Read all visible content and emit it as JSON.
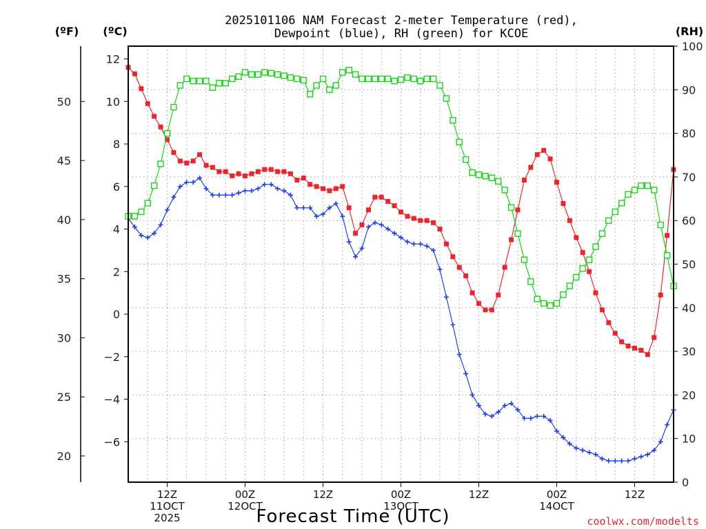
{
  "chart_data": {
    "type": "line",
    "title": [
      "2025101106 NAM Forecast 2-meter Temperature (red),",
      "Dewpoint (blue), RH (green) for KCOE"
    ],
    "xlabel": "Forecast Time (UTC)",
    "units": {
      "left_outer": "(ºF)",
      "left_inner": "(ºC)",
      "right": "(RH)"
    },
    "x_range_hours": [
      0,
      84
    ],
    "x_ticks": [
      {
        "hour": 6,
        "lines": [
          "12Z",
          "11OCT",
          "2025"
        ]
      },
      {
        "hour": 18,
        "lines": [
          "00Z",
          "12OCT"
        ]
      },
      {
        "hour": 30,
        "lines": [
          "12Z"
        ]
      },
      {
        "hour": 42,
        "lines": [
          "00Z",
          "13OCT"
        ]
      },
      {
        "hour": 54,
        "lines": [
          "12Z"
        ]
      },
      {
        "hour": 66,
        "lines": [
          "00Z",
          "14OCT"
        ]
      },
      {
        "hour": 78,
        "lines": [
          "12Z"
        ]
      }
    ],
    "y_left_c": {
      "range": [
        -7.9,
        12.6
      ],
      "ticks": [
        12,
        10,
        8,
        6,
        4,
        2,
        0,
        -2,
        -4,
        -6
      ]
    },
    "y_left_f": {
      "ticks": [
        50,
        45,
        40,
        35,
        30,
        25,
        20
      ]
    },
    "y_right_rh": {
      "range": [
        0,
        100
      ],
      "ticks": [
        100,
        90,
        80,
        70,
        60,
        50,
        40,
        30,
        20,
        10,
        0
      ]
    },
    "grid": true,
    "x_hours": [
      0,
      1,
      2,
      3,
      4,
      5,
      6,
      7,
      8,
      9,
      10,
      11,
      12,
      13,
      14,
      15,
      16,
      17,
      18,
      19,
      20,
      21,
      22,
      23,
      24,
      25,
      26,
      27,
      28,
      29,
      30,
      31,
      32,
      33,
      34,
      35,
      36,
      37,
      38,
      39,
      40,
      41,
      42,
      43,
      44,
      45,
      46,
      47,
      48,
      49,
      50,
      51,
      52,
      53,
      54,
      55,
      56,
      57,
      58,
      59,
      60,
      61,
      62,
      63,
      64,
      65,
      66,
      67,
      68,
      69,
      70,
      71,
      72,
      73,
      74,
      75,
      76,
      77,
      78,
      79,
      80,
      81,
      82,
      83,
      84
    ],
    "series": [
      {
        "name": "Temperature",
        "unit": "°C",
        "color": "#e8262e",
        "marker": "filled-square",
        "values": [
          11.6,
          11.3,
          10.6,
          9.9,
          9.3,
          8.8,
          8.2,
          7.6,
          7.2,
          7.1,
          7.2,
          7.5,
          7.0,
          6.9,
          6.7,
          6.7,
          6.5,
          6.6,
          6.5,
          6.6,
          6.7,
          6.8,
          6.8,
          6.7,
          6.7,
          6.6,
          6.3,
          6.4,
          6.1,
          6.0,
          5.9,
          5.8,
          5.9,
          6.0,
          5.0,
          3.8,
          4.2,
          4.9,
          5.5,
          5.5,
          5.3,
          5.1,
          4.8,
          4.6,
          4.5,
          4.4,
          4.4,
          4.3,
          4.0,
          3.3,
          2.7,
          2.2,
          1.8,
          1.0,
          0.5,
          0.2,
          0.2,
          0.9,
          2.2,
          3.5,
          4.9,
          6.3,
          6.9,
          7.5,
          7.7,
          7.3,
          6.2,
          5.2,
          4.4,
          3.6,
          2.9,
          2.0,
          1.0,
          0.2,
          -0.4,
          -0.9,
          -1.3,
          -1.5,
          -1.6,
          -1.7,
          -1.9,
          -1.1,
          0.9,
          3.7,
          6.8
        ]
      },
      {
        "name": "Dewpoint",
        "unit": "°C",
        "color": "#1f3fe0",
        "marker": "plus",
        "values": [
          4.5,
          4.1,
          3.7,
          3.6,
          3.8,
          4.2,
          4.9,
          5.5,
          6.0,
          6.2,
          6.2,
          6.4,
          5.9,
          5.6,
          5.6,
          5.6,
          5.6,
          5.7,
          5.8,
          5.8,
          5.9,
          6.1,
          6.1,
          5.9,
          5.8,
          5.6,
          5.0,
          5.0,
          5.0,
          4.6,
          4.7,
          5.0,
          5.2,
          4.6,
          3.4,
          2.7,
          3.1,
          4.1,
          4.3,
          4.2,
          4.0,
          3.8,
          3.6,
          3.4,
          3.3,
          3.3,
          3.2,
          3.0,
          2.1,
          0.8,
          -0.5,
          -1.9,
          -2.8,
          -3.8,
          -4.3,
          -4.7,
          -4.8,
          -4.6,
          -4.3,
          -4.2,
          -4.5,
          -4.9,
          -4.9,
          -4.8,
          -4.8,
          -5.0,
          -5.5,
          -5.8,
          -6.1,
          -6.3,
          -6.4,
          -6.5,
          -6.6,
          -6.8,
          -6.9,
          -6.9,
          -6.9,
          -6.9,
          -6.8,
          -6.7,
          -6.6,
          -6.4,
          -6.0,
          -5.2,
          -4.5
        ]
      },
      {
        "name": "RH",
        "unit": "%",
        "color": "#14d414",
        "marker": "open-square",
        "values": [
          61,
          61,
          62,
          64,
          68,
          73,
          80,
          86,
          91,
          92.5,
          92,
          92,
          92,
          90.5,
          91.5,
          91.5,
          92.5,
          93,
          94,
          93.5,
          93.5,
          94,
          93.8,
          93.5,
          93.2,
          92.8,
          92.5,
          92.2,
          89,
          91,
          92.5,
          90,
          91,
          94,
          94.5,
          93.5,
          92.5,
          92.5,
          92.5,
          92.5,
          92.5,
          92,
          92.3,
          92.8,
          92.5,
          92,
          92.5,
          92.5,
          91,
          88,
          83,
          78,
          74,
          71,
          70.5,
          70.2,
          69.8,
          69,
          67,
          63,
          57,
          51,
          46,
          42,
          41,
          40.5,
          41,
          43,
          45,
          47,
          49,
          51,
          54,
          57,
          60,
          62,
          64,
          66,
          67,
          68,
          68,
          67,
          59,
          52,
          45
        ]
      }
    ]
  }
}
